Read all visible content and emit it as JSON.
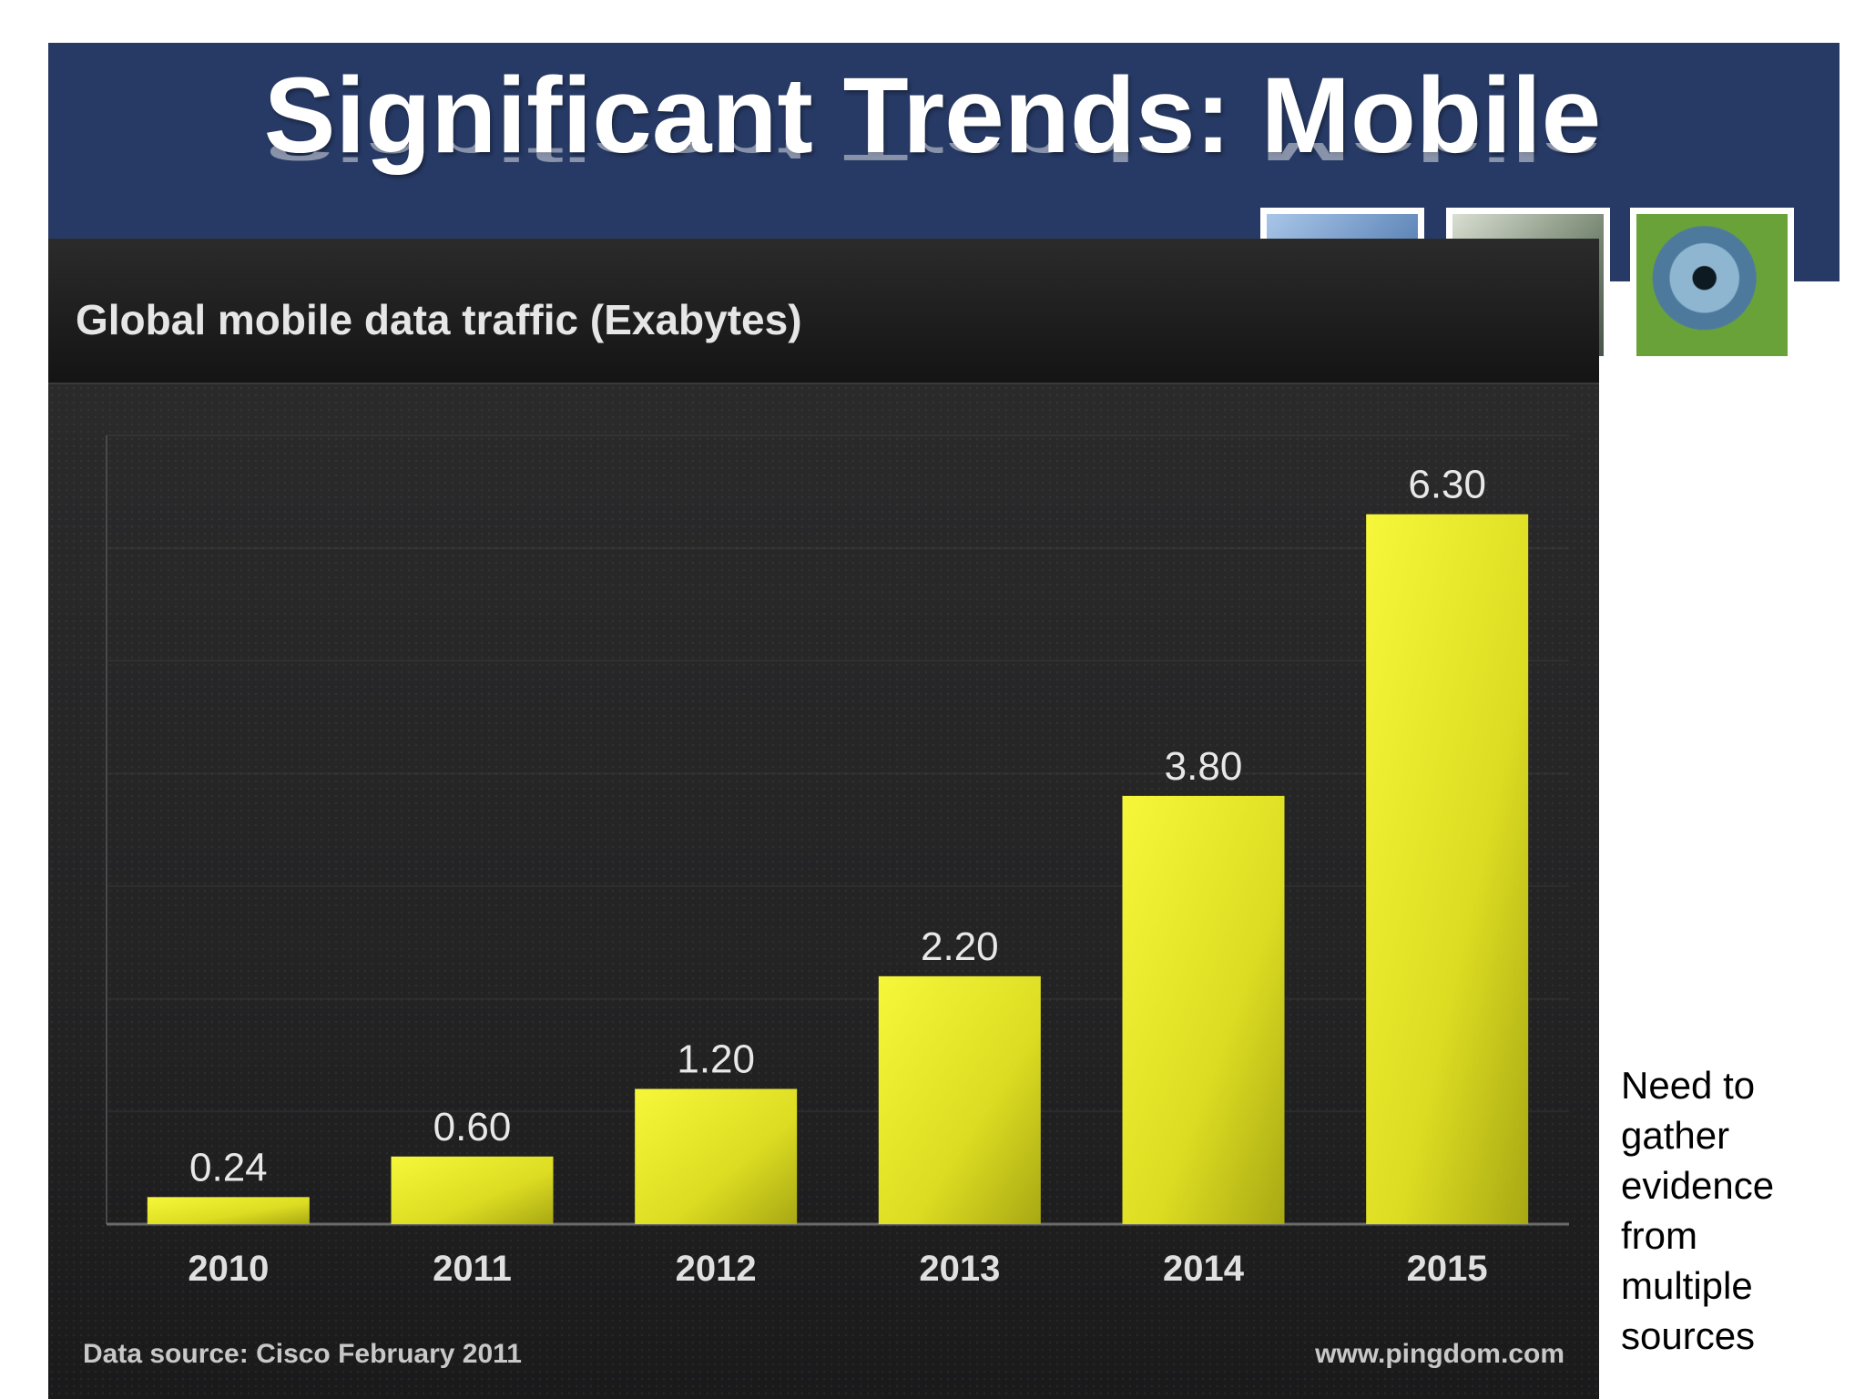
{
  "slide": {
    "title": "Significant Trends: Mobile",
    "side_note": [
      "Need to",
      "gather",
      "evidence",
      "from",
      "multiple",
      "sources"
    ],
    "banner_color": "#273a65"
  },
  "chart_data": {
    "type": "bar",
    "title": "Global mobile data traffic (Exabytes)",
    "categories": [
      "2010",
      "2011",
      "2012",
      "2013",
      "2014",
      "2015"
    ],
    "values": [
      0.24,
      0.6,
      1.2,
      2.2,
      3.8,
      6.3
    ],
    "value_labels": [
      "0.24",
      "0.60",
      "1.20",
      "2.20",
      "3.80",
      "6.30"
    ],
    "ylim": [
      0,
      7
    ],
    "grid": true,
    "bar_color": "#e8e82a",
    "source": "Data source: Cisco February 2011",
    "credit": "www.pingdom.com"
  }
}
